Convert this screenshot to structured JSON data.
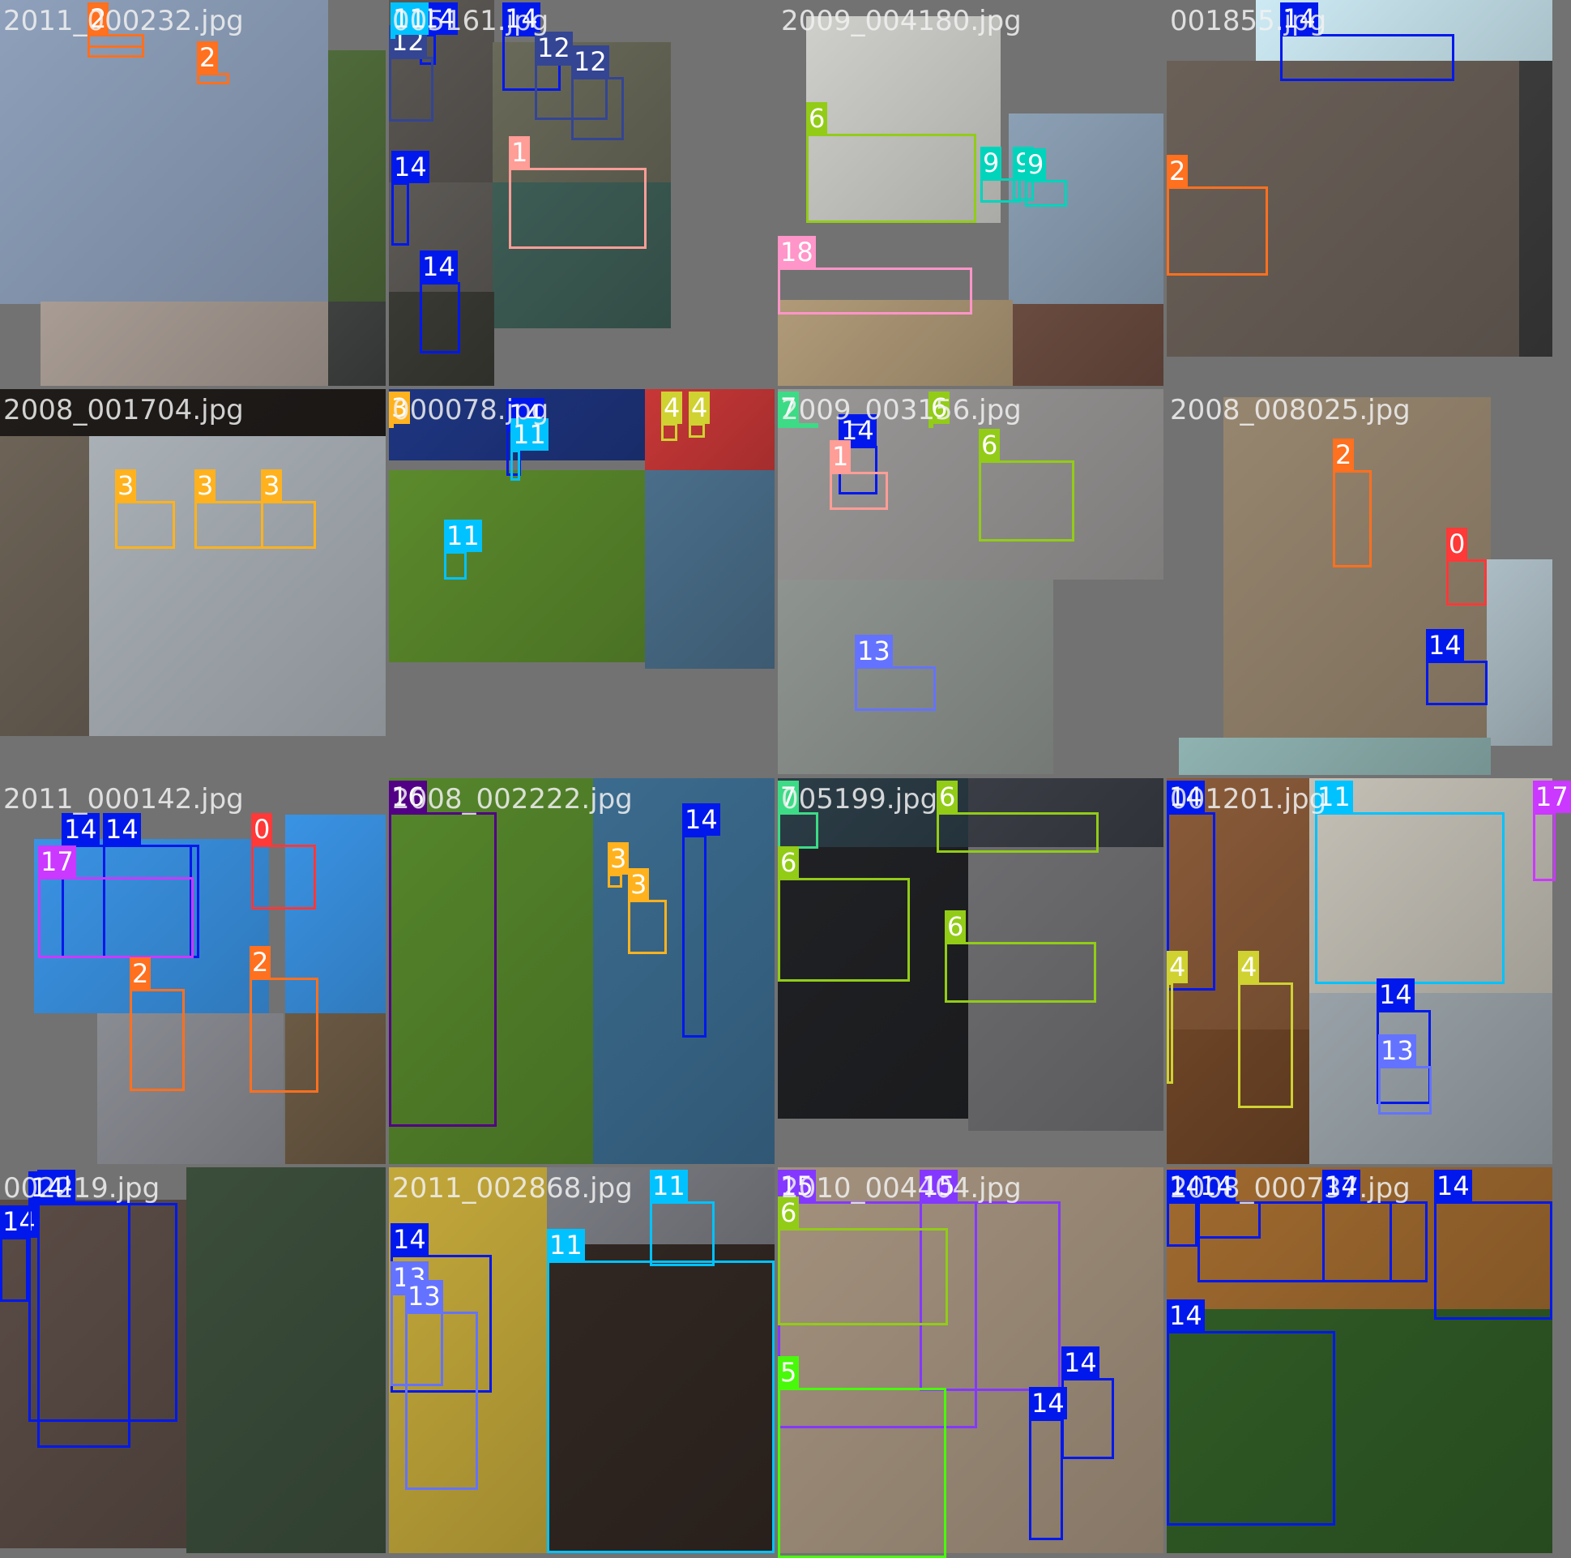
{
  "mosaic": {
    "class_colors": {
      "0": "#ff3838",
      "1": "#ff9d97",
      "2": "#ff701f",
      "3": "#ffb21d",
      "4": "#cfd231",
      "5": "#48f90a",
      "6": "#92cc17",
      "7": "#3ddb86",
      "9": "#00d4bb",
      "11": "#00c2ff",
      "12": "#344593",
      "13": "#6473ff",
      "14": "#0018ec",
      "15": "#8438ff",
      "16": "#520085",
      "17": "#cb38ff",
      "18": "#ff95c8"
    },
    "cells": [
      {
        "filename": "2011_000232.jpg",
        "bg": "#9aa8bd",
        "boxes": [
          {
            "cls": "2",
            "label": "2"
          },
          {
            "cls": "2",
            "label": "2"
          },
          {
            "cls": "2",
            "label": "2"
          }
        ]
      },
      {
        "filename": "005161.jpg",
        "bg": "#6f6d6a",
        "boxes": [
          {
            "cls": "14",
            "label": "14"
          },
          {
            "cls": "12",
            "label": "12"
          },
          {
            "cls": "14",
            "label": "14"
          },
          {
            "cls": "12",
            "label": "12"
          },
          {
            "cls": "12",
            "label": "12"
          },
          {
            "cls": "1",
            "label": "1"
          },
          {
            "cls": "14",
            "label": "14"
          },
          {
            "cls": "14",
            "label": "14"
          },
          {
            "cls": "11",
            "label": "11"
          }
        ]
      },
      {
        "filename": "2009_004180.jpg",
        "bg": "#9b9a96",
        "boxes": [
          {
            "cls": "6",
            "label": "6"
          },
          {
            "cls": "9",
            "label": "9"
          },
          {
            "cls": "9",
            "label": "9"
          },
          {
            "cls": "9",
            "label": "9"
          },
          {
            "cls": "18",
            "label": "18"
          }
        ]
      },
      {
        "filename": "001855.jpg",
        "bg": "#7a7167",
        "boxes": [
          {
            "cls": "14",
            "label": "14"
          },
          {
            "cls": "2",
            "label": "2"
          }
        ]
      },
      {
        "filename": "2008_001704.jpg",
        "bg": "#a5abb0",
        "boxes": [
          {
            "cls": "3",
            "label": "3"
          },
          {
            "cls": "3",
            "label": "3"
          },
          {
            "cls": "3",
            "label": "3"
          }
        ]
      },
      {
        "filename": "000078.jpg",
        "bg": "#5c8a2e",
        "boxes": [
          {
            "cls": "4",
            "label": "4"
          },
          {
            "cls": "4",
            "label": "4"
          },
          {
            "cls": "14",
            "label": "14"
          },
          {
            "cls": "11",
            "label": "11"
          },
          {
            "cls": "11",
            "label": "11"
          },
          {
            "cls": "3",
            "label": "3"
          },
          {
            "cls": "3",
            "label": "3"
          }
        ]
      },
      {
        "filename": "2009_003156.jpg",
        "bg": "#8f9192",
        "boxes": [
          {
            "cls": "14",
            "label": "14"
          },
          {
            "cls": "1",
            "label": "1"
          },
          {
            "cls": "6",
            "label": "6"
          },
          {
            "cls": "13",
            "label": "13"
          },
          {
            "cls": "7",
            "label": "7"
          },
          {
            "cls": "6",
            "label": "6"
          }
        ]
      },
      {
        "filename": "2008_008025.jpg",
        "bg": "#8e8173",
        "boxes": [
          {
            "cls": "2",
            "label": "2"
          },
          {
            "cls": "0",
            "label": "0"
          },
          {
            "cls": "14",
            "label": "14"
          }
        ]
      },
      {
        "filename": "2011_000142.jpg",
        "bg": "#d9d9d9",
        "boxes": [
          {
            "cls": "14",
            "label": "14"
          },
          {
            "cls": "14",
            "label": "14"
          },
          {
            "cls": "17",
            "label": "17"
          },
          {
            "cls": "0",
            "label": "0"
          },
          {
            "cls": "2",
            "label": "2"
          },
          {
            "cls": "2",
            "label": "2"
          }
        ]
      },
      {
        "filename": "2008_002222.jpg",
        "bg": "#4d7f25",
        "boxes": [
          {
            "cls": "16",
            "label": "16"
          },
          {
            "cls": "3",
            "label": "3"
          },
          {
            "cls": "3",
            "label": "3"
          },
          {
            "cls": "14",
            "label": "14"
          }
        ]
      },
      {
        "filename": "005199.jpg",
        "bg": "#44484f",
        "boxes": [
          {
            "cls": "7",
            "label": "7"
          },
          {
            "cls": "6",
            "label": "6"
          },
          {
            "cls": "6",
            "label": "6"
          },
          {
            "cls": "6",
            "label": "6"
          }
        ]
      },
      {
        "filename": "001201.jpg",
        "bg": "#7d5a43",
        "boxes": [
          {
            "cls": "14",
            "label": "14"
          },
          {
            "cls": "11",
            "label": "11"
          },
          {
            "cls": "17",
            "label": "17"
          },
          {
            "cls": "4",
            "label": "4"
          },
          {
            "cls": "4",
            "label": "4"
          },
          {
            "cls": "14",
            "label": "14"
          },
          {
            "cls": "13",
            "label": "13"
          }
        ]
      },
      {
        "filename": "002219.jpg",
        "bg": "#6b5247",
        "boxes": [
          {
            "cls": "14",
            "label": "14"
          },
          {
            "cls": "14",
            "label": "14"
          },
          {
            "cls": "14",
            "label": "14"
          }
        ]
      },
      {
        "filename": "2011_002868.jpg",
        "bg": "#8a8758",
        "boxes": [
          {
            "cls": "11",
            "label": "11"
          },
          {
            "cls": "14",
            "label": "14"
          },
          {
            "cls": "13",
            "label": "13"
          },
          {
            "cls": "13",
            "label": "13"
          },
          {
            "cls": "11",
            "label": "11"
          }
        ]
      },
      {
        "filename": "2010_004404.jpg",
        "bg": "#b8ab9a",
        "boxes": [
          {
            "cls": "15",
            "label": "15"
          },
          {
            "cls": "15",
            "label": "15"
          },
          {
            "cls": "6",
            "label": "6"
          },
          {
            "cls": "5",
            "label": "5"
          },
          {
            "cls": "14",
            "label": "14"
          },
          {
            "cls": "14",
            "label": "14"
          }
        ]
      },
      {
        "filename": "2008_000737.jpg",
        "bg": "#6a7c3a",
        "boxes": [
          {
            "cls": "14",
            "label": "14"
          },
          {
            "cls": "14",
            "label": "14"
          },
          {
            "cls": "14",
            "label": "14"
          },
          {
            "cls": "14",
            "label": "14"
          },
          {
            "cls": "14",
            "label": "14"
          },
          {
            "cls": "14",
            "label": "14"
          }
        ]
      }
    ]
  }
}
